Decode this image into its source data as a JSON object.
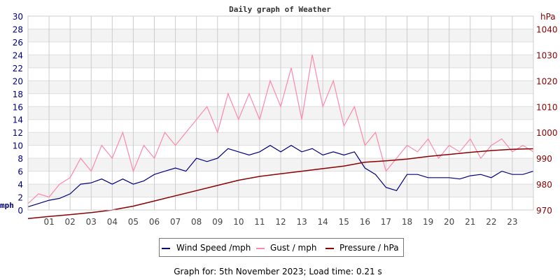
{
  "chart_data": {
    "type": "line",
    "title": "Daily graph of Weather",
    "footer": "Graph for: 5th November 2023; Load time: 0.21 s",
    "left_axis": {
      "unit_label": "mph",
      "range": [
        0,
        30
      ],
      "ticks": [
        0,
        2,
        4,
        6,
        8,
        10,
        12,
        14,
        16,
        18,
        20,
        22,
        24,
        26,
        28,
        30
      ],
      "color": "#000080"
    },
    "right_axis": {
      "unit_label": "hPa",
      "range": [
        970,
        1045
      ],
      "ticks": [
        970,
        980,
        990,
        1000,
        1010,
        1020,
        1030,
        1040
      ],
      "color": "#8b0000"
    },
    "x_axis": {
      "range": [
        0,
        24
      ],
      "tick_labels": [
        "01",
        "02",
        "03",
        "04",
        "05",
        "06",
        "07",
        "08",
        "09",
        "10",
        "11",
        "12",
        "13",
        "14",
        "15",
        "16",
        "17",
        "18",
        "19",
        "20",
        "21",
        "22",
        "23"
      ]
    },
    "grid": true,
    "legend_placement": "bottom",
    "series": [
      {
        "name": "Wind Speed /mph",
        "color": "#000080",
        "axis": "left",
        "x": [
          0,
          0.5,
          1,
          1.5,
          2,
          2.5,
          3,
          3.5,
          4,
          4.5,
          5,
          5.5,
          6,
          6.5,
          7,
          7.5,
          8,
          8.5,
          9,
          9.5,
          10,
          10.5,
          11,
          11.5,
          12,
          12.5,
          13,
          13.5,
          14,
          14.5,
          15,
          15.5,
          16,
          16.5,
          17,
          17.5,
          18,
          18.5,
          19,
          19.5,
          20,
          20.5,
          21,
          21.5,
          22,
          22.5,
          23,
          23.5,
          24
        ],
        "values": [
          0.5,
          1,
          1.5,
          1.8,
          2.5,
          4,
          4.2,
          4.8,
          4,
          4.8,
          4,
          4.5,
          5.5,
          6,
          6.5,
          6,
          8,
          7.5,
          8,
          9.5,
          9,
          8.5,
          9,
          10,
          9,
          10,
          9,
          9.5,
          8.5,
          9,
          8.5,
          9,
          6.5,
          5.5,
          3.5,
          3,
          5.5,
          5.5,
          5,
          5,
          5,
          4.8,
          5.3,
          5.5,
          5,
          6,
          5.5,
          5.5,
          6
        ]
      },
      {
        "name": "Gust / mph",
        "color": "#ff88aa",
        "axis": "left",
        "x": [
          0,
          0.5,
          1,
          1.5,
          2,
          2.5,
          3,
          3.5,
          4,
          4.5,
          5,
          5.5,
          6,
          6.5,
          7,
          7.5,
          8,
          8.5,
          9,
          9.5,
          10,
          10.5,
          11,
          11.5,
          12,
          12.5,
          13,
          13.5,
          14,
          14.5,
          15,
          15.5,
          16,
          16.5,
          17,
          17.5,
          18,
          18.5,
          19,
          19.5,
          20,
          20.5,
          21,
          21.5,
          22,
          22.5,
          23,
          23.5,
          24
        ],
        "values": [
          1,
          2.5,
          2,
          4,
          5,
          8,
          6,
          10,
          8,
          12,
          6,
          10,
          8,
          12,
          10,
          12,
          14,
          16,
          12,
          18,
          14,
          18,
          14,
          20,
          16,
          22,
          14,
          24,
          16,
          20,
          13,
          16,
          10,
          12,
          6,
          8,
          10,
          9,
          11,
          8,
          10,
          9,
          11,
          8,
          10,
          11,
          9,
          10,
          9
        ]
      },
      {
        "name": "Pressure / hPa",
        "color": "#8b0000",
        "axis": "right",
        "x": [
          0,
          1,
          2,
          3,
          4,
          5,
          6,
          7,
          8,
          9,
          10,
          11,
          12,
          13,
          14,
          15,
          16,
          17,
          18,
          19,
          20,
          21,
          22,
          23,
          24
        ],
        "values": [
          966.7,
          967.5,
          968.2,
          969,
          970,
          971.5,
          973.5,
          975.5,
          977.5,
          979.5,
          981.5,
          983,
          984,
          985,
          986,
          987,
          988.5,
          989,
          989.7,
          990.7,
          991.5,
          992.3,
          993,
          993.5,
          993.7
        ]
      }
    ]
  }
}
